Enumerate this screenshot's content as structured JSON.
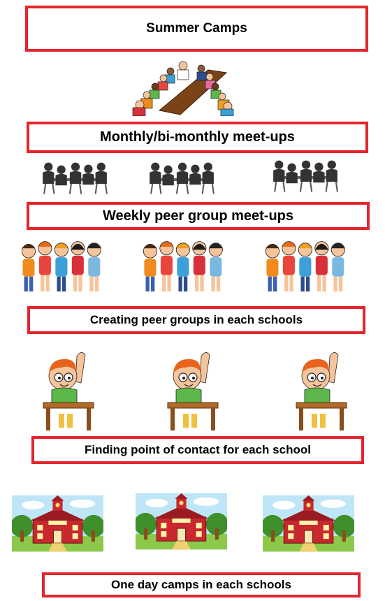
{
  "levels": [
    {
      "label": "Summer Camps"
    },
    {
      "label": "Monthly/bi-monthly meet-ups"
    },
    {
      "label": "Weekly peer group meet-ups"
    },
    {
      "label": "Creating peer groups in each schools"
    },
    {
      "label": "Finding point of contact for each school"
    },
    {
      "label": "One day camps in each schools"
    }
  ],
  "colors": {
    "border": "#e3262d",
    "text": "#000000"
  },
  "icons": {
    "meeting": "conference-table-icon",
    "silhouettes": "group-silhouette-icon",
    "kids": "kids-group-icon",
    "student": "student-raising-hand-icon",
    "school": "school-building-icon"
  },
  "school_sign": "SCHOOL"
}
